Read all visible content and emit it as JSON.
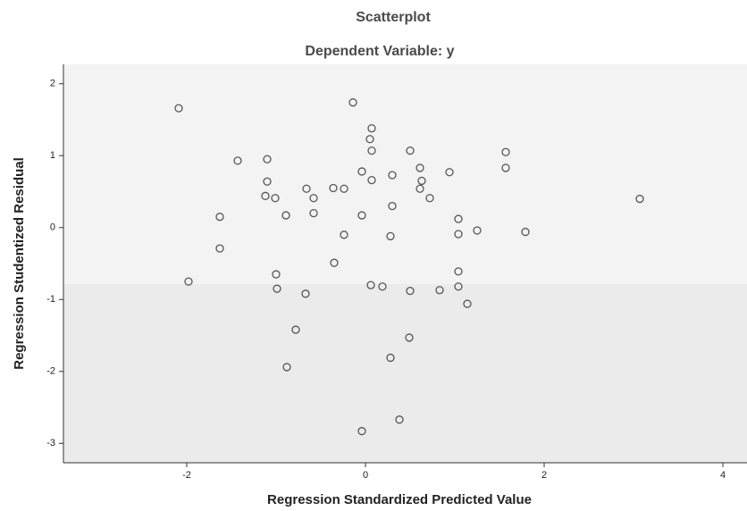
{
  "chart_data": {
    "type": "scatter",
    "title": "Scatterplot",
    "subtitle": "Dependent Variable: y",
    "x_label": "Regression Standardized Predicted Value",
    "y_label": "Regression Studentized Residual",
    "x": [
      -2.09,
      -0.14,
      0.07,
      0.05,
      0.07,
      0.5,
      1.57,
      -1.43,
      -1.1,
      1.57,
      0.61,
      -0.04,
      0.94,
      0.3,
      -1.1,
      0.07,
      0.63,
      -0.66,
      -0.36,
      -0.24,
      0.61,
      -1.12,
      -1.01,
      -0.58,
      0.72,
      3.07,
      0.3,
      -0.89,
      -0.58,
      -0.04,
      -1.63,
      1.04,
      -0.24,
      0.28,
      1.04,
      1.25,
      1.79,
      -1.63,
      -0.35,
      -1.98,
      -1.0,
      1.04,
      0.06,
      0.19,
      -0.99,
      0.5,
      0.83,
      1.04,
      -0.67,
      1.14,
      -0.78,
      0.49,
      0.28,
      -0.88,
      0.38,
      -0.04
    ],
    "values": [
      1.66,
      1.74,
      1.38,
      1.23,
      1.07,
      1.07,
      1.05,
      0.93,
      0.95,
      0.83,
      0.83,
      0.78,
      0.77,
      0.73,
      0.64,
      0.66,
      0.65,
      0.54,
      0.55,
      0.54,
      0.54,
      0.44,
      0.41,
      0.41,
      0.41,
      0.4,
      0.3,
      0.17,
      0.2,
      0.17,
      0.15,
      0.12,
      -0.1,
      -0.12,
      -0.09,
      -0.04,
      -0.06,
      -0.29,
      -0.49,
      -0.75,
      -0.65,
      -0.61,
      -0.8,
      -0.82,
      -0.85,
      -0.88,
      -0.87,
      -0.82,
      -0.92,
      -1.06,
      -1.42,
      -1.53,
      -1.81,
      -1.94,
      -2.67,
      -2.83
    ],
    "color": "#555555",
    "xlim": [
      -3.38,
      4.27
    ],
    "ylim": [
      -3.27,
      2.27
    ],
    "xticks": [
      -2,
      0,
      2,
      4
    ],
    "yticks": [
      -3,
      -2,
      -1,
      0,
      1,
      2
    ],
    "grid": false
  }
}
